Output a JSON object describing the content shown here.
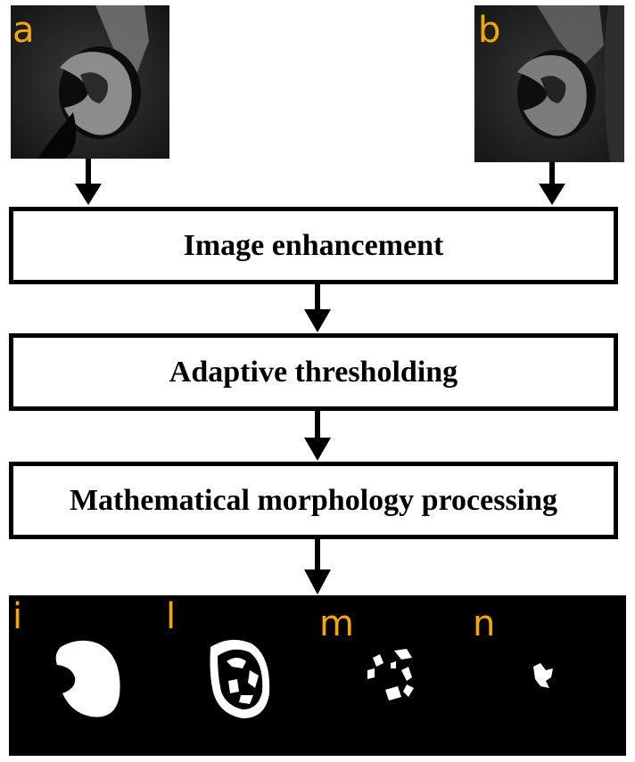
{
  "input_panels": [
    {
      "label": "a"
    },
    {
      "label": "b"
    }
  ],
  "steps": [
    {
      "label": "Image enhancement"
    },
    {
      "label": "Adaptive thresholding"
    },
    {
      "label": "Mathematical morphology processing"
    }
  ],
  "output_panels": [
    {
      "label": "i"
    },
    {
      "label": "l"
    },
    {
      "label": "m"
    },
    {
      "label": "n"
    }
  ],
  "colors": {
    "panel_label": "#f5a800",
    "box_border": "#000000",
    "result_background": "#000000"
  }
}
